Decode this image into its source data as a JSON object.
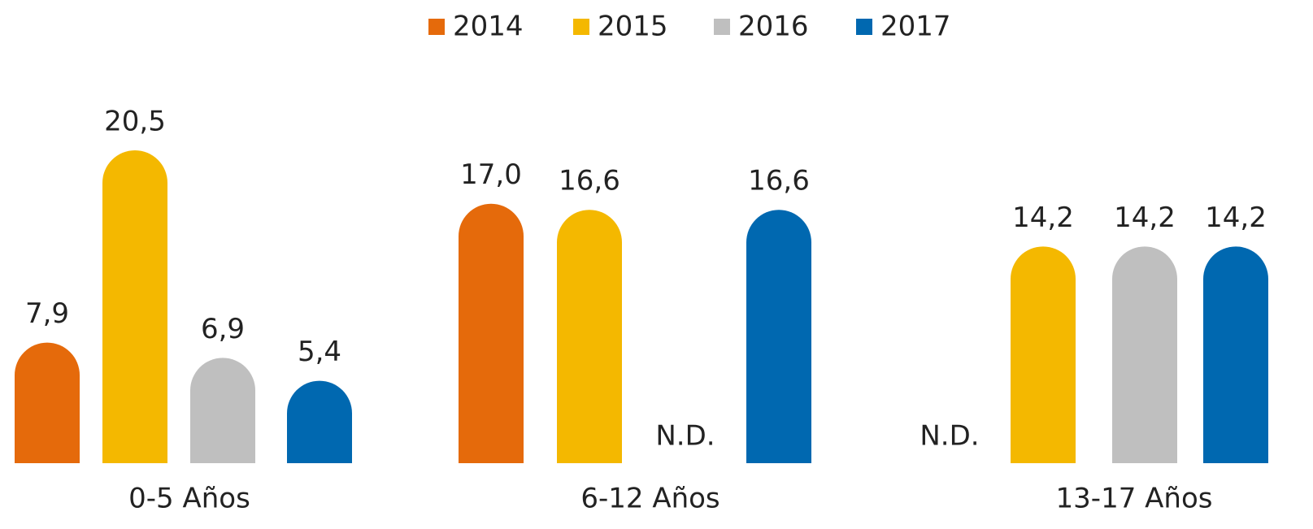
{
  "chart_data": {
    "type": "bar",
    "categories": [
      "0-5 Años",
      "6-12 Años",
      "13-17 Años"
    ],
    "series": [
      {
        "name": "2014",
        "color": "#e56a0b",
        "values": [
          7.9,
          17.0,
          null
        ],
        "value_labels": [
          "7,9",
          "17,0",
          "N.D."
        ]
      },
      {
        "name": "2015",
        "color": "#f4b800",
        "values": [
          20.5,
          16.6,
          14.2
        ],
        "value_labels": [
          "20,5",
          "16,6",
          "14,2"
        ]
      },
      {
        "name": "2016",
        "color": "#bfbfbf",
        "values": [
          6.9,
          null,
          14.2
        ],
        "value_labels": [
          "6,9",
          "N.D.",
          "14,2"
        ]
      },
      {
        "name": "2017",
        "color": "#0068b0",
        "values": [
          5.4,
          16.6,
          14.2
        ],
        "value_labels": [
          "5,4",
          "16,6",
          "14,2"
        ]
      }
    ],
    "legend": "top"
  }
}
